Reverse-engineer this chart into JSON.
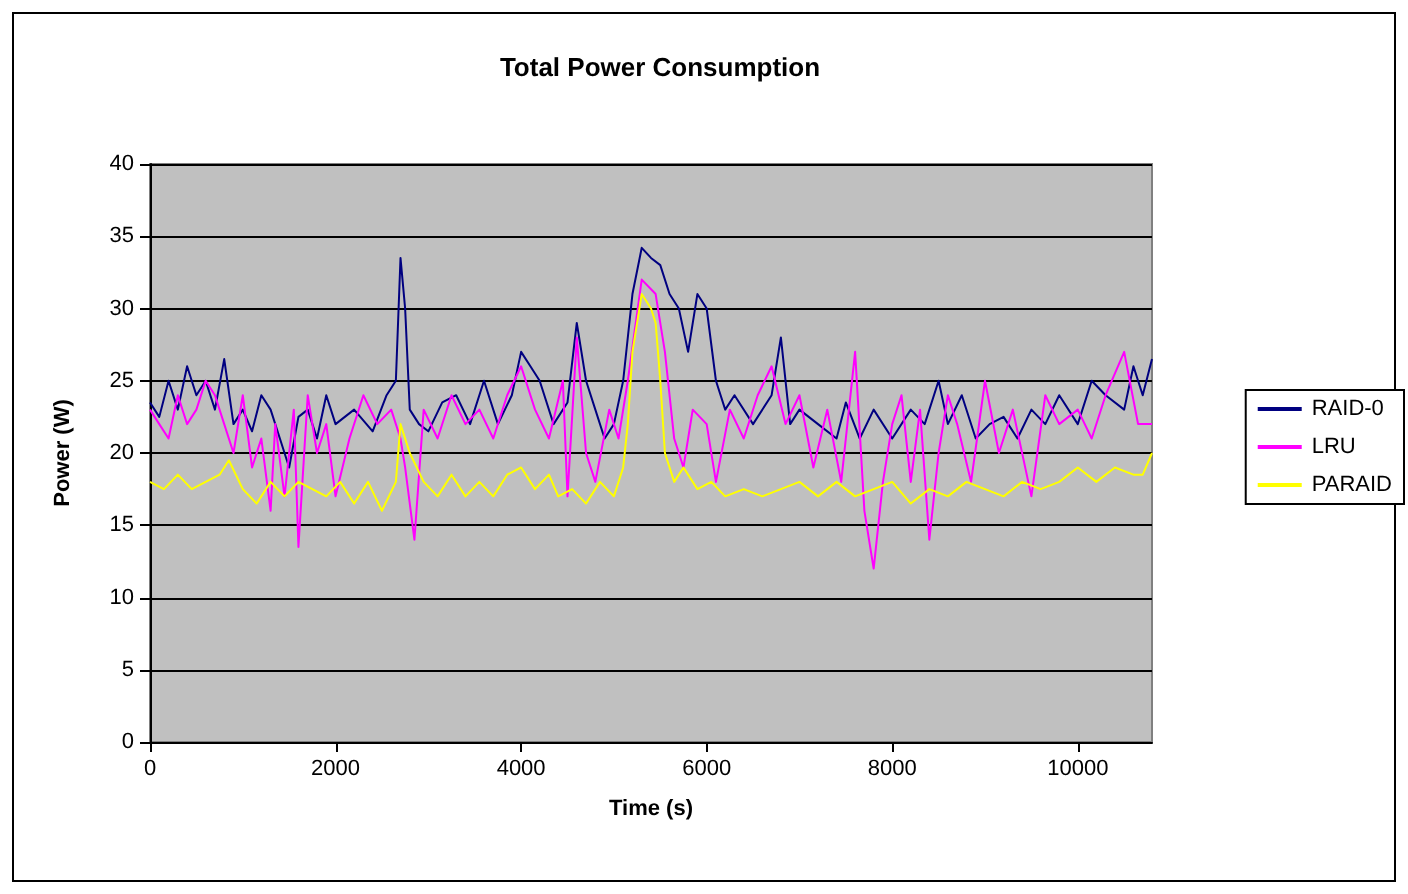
{
  "chart_data": {
    "type": "line",
    "title": "Total Power Consumption",
    "xlabel": "Time (s)",
    "ylabel": "Power (W)",
    "xlim": [
      0,
      10800
    ],
    "xticks": [
      0,
      2000,
      4000,
      6000,
      8000,
      10000
    ],
    "ylim": [
      0,
      40
    ],
    "yticks": [
      0,
      5,
      10,
      15,
      20,
      25,
      30,
      35,
      40
    ],
    "grid": "y",
    "legend": "right",
    "marker": "none",
    "line_style": "solid",
    "series": [
      {
        "name": "RAID-0",
        "color": "#000080",
        "x": [
          0,
          100,
          200,
          300,
          400,
          500,
          600,
          700,
          800,
          900,
          1000,
          1100,
          1200,
          1300,
          1400,
          1500,
          1600,
          1700,
          1800,
          1900,
          2000,
          2200,
          2400,
          2550,
          2650,
          2700,
          2750,
          2800,
          2900,
          3000,
          3150,
          3300,
          3450,
          3600,
          3750,
          3900,
          4000,
          4100,
          4200,
          4350,
          4500,
          4600,
          4700,
          4800,
          4900,
          5000,
          5100,
          5200,
          5300,
          5400,
          5500,
          5600,
          5700,
          5800,
          5900,
          6000,
          6100,
          6200,
          6300,
          6500,
          6700,
          6800,
          6900,
          7000,
          7200,
          7400,
          7500,
          7650,
          7800,
          8000,
          8200,
          8350,
          8500,
          8600,
          8750,
          8900,
          9050,
          9200,
          9350,
          9500,
          9650,
          9800,
          10000,
          10150,
          10300,
          10500,
          10600,
          10700,
          10800
        ],
        "values": [
          23.5,
          22.5,
          25,
          23,
          26,
          24,
          25,
          23,
          26.5,
          22,
          23,
          21.5,
          24,
          23,
          21,
          19,
          22.5,
          23,
          21,
          24,
          22,
          23,
          21.5,
          24,
          25,
          33.5,
          30,
          23,
          22,
          21.5,
          23.5,
          24,
          22,
          25,
          22,
          24,
          27,
          26,
          25,
          22,
          23.5,
          29,
          25,
          23,
          21,
          22,
          25,
          31,
          34.2,
          33.5,
          33,
          31,
          30,
          27,
          31,
          30,
          25,
          23,
          24,
          22,
          24,
          28,
          22,
          23,
          22,
          21,
          23.5,
          21,
          23,
          21,
          23,
          22,
          25,
          22,
          24,
          21,
          22,
          22.5,
          21,
          23,
          22,
          24,
          22,
          25,
          24,
          23,
          26,
          24,
          26.5
        ]
      },
      {
        "name": "LRU",
        "color": "#ff00ff",
        "x": [
          0,
          100,
          200,
          300,
          400,
          500,
          600,
          700,
          800,
          900,
          1000,
          1100,
          1200,
          1300,
          1350,
          1450,
          1550,
          1600,
          1700,
          1800,
          1900,
          2000,
          2150,
          2300,
          2450,
          2600,
          2700,
          2750,
          2850,
          2950,
          3100,
          3250,
          3400,
          3550,
          3700,
          3850,
          4000,
          4150,
          4300,
          4450,
          4500,
          4600,
          4700,
          4800,
          4950,
          5050,
          5150,
          5300,
          5450,
          5550,
          5650,
          5750,
          5850,
          6000,
          6100,
          6250,
          6400,
          6550,
          6700,
          6850,
          7000,
          7150,
          7300,
          7450,
          7600,
          7700,
          7800,
          7900,
          8000,
          8100,
          8200,
          8300,
          8400,
          8500,
          8600,
          8700,
          8850,
          9000,
          9150,
          9300,
          9500,
          9650,
          9800,
          10000,
          10150,
          10300,
          10500,
          10650,
          10800
        ],
        "values": [
          23,
          22,
          21,
          24,
          22,
          23,
          25,
          24,
          22,
          20,
          24,
          19,
          21,
          16,
          22,
          17,
          23,
          13.5,
          24,
          20,
          22,
          17,
          21,
          24,
          22,
          23,
          21,
          19,
          14,
          23,
          21,
          24,
          22,
          23,
          21,
          24,
          26,
          23,
          21,
          25,
          17,
          28,
          20,
          18,
          23,
          21,
          25,
          32,
          31,
          27,
          21,
          19,
          23,
          22,
          18,
          23,
          21,
          24,
          26,
          22,
          24,
          19,
          23,
          18,
          27,
          16,
          12,
          18,
          22,
          24,
          18,
          23,
          14,
          20,
          24,
          22,
          18,
          25,
          20,
          23,
          17,
          24,
          22,
          23,
          21,
          24,
          27,
          22,
          22
        ]
      },
      {
        "name": "PARAID",
        "color": "#ffff00",
        "x": [
          0,
          150,
          300,
          450,
          600,
          750,
          850,
          1000,
          1150,
          1300,
          1450,
          1600,
          1750,
          1900,
          2050,
          2200,
          2350,
          2500,
          2650,
          2700,
          2800,
          2950,
          3100,
          3250,
          3400,
          3550,
          3700,
          3850,
          4000,
          4150,
          4300,
          4400,
          4550,
          4700,
          4850,
          5000,
          5100,
          5150,
          5200,
          5300,
          5400,
          5450,
          5500,
          5550,
          5650,
          5750,
          5900,
          6050,
          6200,
          6400,
          6600,
          6800,
          7000,
          7200,
          7400,
          7600,
          7800,
          8000,
          8200,
          8400,
          8600,
          8800,
          9000,
          9200,
          9400,
          9600,
          9800,
          10000,
          10200,
          10400,
          10600,
          10700,
          10800
        ],
        "values": [
          18,
          17.5,
          18.5,
          17.5,
          18,
          18.5,
          19.5,
          17.5,
          16.5,
          18,
          17,
          18,
          17.5,
          17,
          18,
          16.5,
          18,
          16,
          18,
          22,
          20,
          18,
          17,
          18.5,
          17,
          18,
          17,
          18.5,
          19,
          17.5,
          18.5,
          17,
          17.5,
          16.5,
          18,
          17,
          19,
          22,
          27,
          31,
          30,
          29,
          25,
          20,
          18,
          19,
          17.5,
          18,
          17,
          17.5,
          17,
          17.5,
          18,
          17,
          18,
          17,
          17.5,
          18,
          16.5,
          17.5,
          17,
          18,
          17.5,
          17,
          18,
          17.5,
          18,
          19,
          18,
          19,
          18.5,
          18.5,
          20
        ]
      }
    ]
  }
}
